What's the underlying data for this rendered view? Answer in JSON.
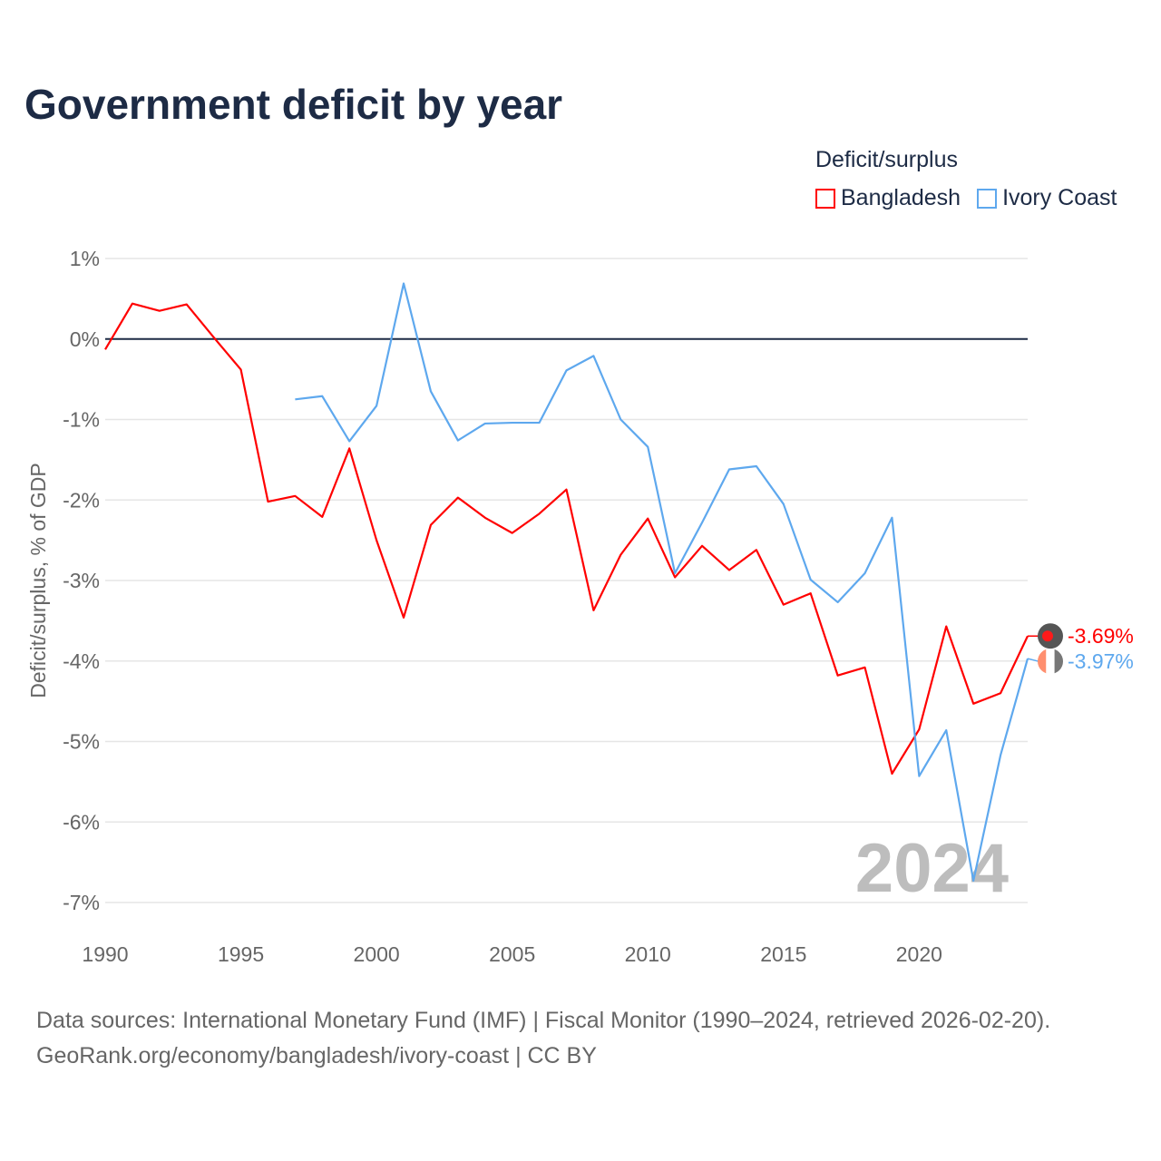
{
  "title": "Government deficit by year",
  "legend": {
    "title": "Deficit/surplus"
  },
  "source": {
    "line1": "Data sources: International Monetary Fund (IMF) | Fiscal Monitor (1990–2024, retrieved 2026-02-20).",
    "line2": "GeoRank.org/economy/bangladesh/ivory-coast | CC BY"
  },
  "chart_data": {
    "type": "line",
    "title": "Government deficit by year",
    "xlabel": "",
    "ylabel": "Deficit/surplus, % of GDP",
    "xlim": [
      1990,
      2024
    ],
    "ylim": [
      -7,
      1
    ],
    "xticks": [
      1990,
      1995,
      2000,
      2005,
      2010,
      2015,
      2020
    ],
    "yticks": [
      1,
      0,
      -1,
      -2,
      -3,
      -4,
      -5,
      -6,
      -7
    ],
    "ytick_labels": [
      "1%",
      "0%",
      "-1%",
      "-2%",
      "-3%",
      "-4%",
      "-5%",
      "-6%",
      "-7%"
    ],
    "year_watermark": "2024",
    "series": [
      {
        "name": "Bangladesh",
        "color": "#ff0000",
        "end_label": "-3.69%",
        "x": [
          1990,
          1991,
          1992,
          1993,
          1994,
          1995,
          1996,
          1997,
          1998,
          1999,
          2000,
          2001,
          2002,
          2003,
          2004,
          2005,
          2006,
          2007,
          2008,
          2009,
          2010,
          2011,
          2012,
          2013,
          2014,
          2015,
          2016,
          2017,
          2018,
          2019,
          2020,
          2021,
          2022,
          2023,
          2024
        ],
        "values": [
          -0.13,
          0.44,
          0.35,
          0.43,
          0.02,
          -0.38,
          -2.02,
          -1.95,
          -2.21,
          -1.36,
          -2.5,
          -3.46,
          -2.31,
          -1.97,
          -2.22,
          -2.41,
          -2.17,
          -1.87,
          -3.37,
          -2.68,
          -2.23,
          -2.96,
          -2.57,
          -2.87,
          -2.62,
          -3.3,
          -3.16,
          -4.18,
          -4.08,
          -5.4,
          -4.85,
          -3.57,
          -4.53,
          -4.4,
          -3.69
        ]
      },
      {
        "name": "Ivory Coast",
        "color": "#5ea8ee",
        "end_label": "-3.97%",
        "x": [
          1997,
          1998,
          1999,
          2000,
          2001,
          2002,
          2003,
          2004,
          2005,
          2006,
          2007,
          2008,
          2009,
          2010,
          2011,
          2012,
          2013,
          2014,
          2015,
          2016,
          2017,
          2018,
          2019,
          2020,
          2021,
          2022,
          2023,
          2024
        ],
        "values": [
          -0.75,
          -0.71,
          -1.27,
          -0.83,
          0.69,
          -0.65,
          -1.26,
          -1.05,
          -1.04,
          -1.04,
          -0.39,
          -0.21,
          -1.0,
          -1.34,
          -2.91,
          -2.28,
          -1.62,
          -1.58,
          -2.05,
          -2.99,
          -3.27,
          -2.91,
          -2.22,
          -5.43,
          -4.86,
          -6.73,
          -5.17,
          -3.97
        ]
      }
    ]
  }
}
